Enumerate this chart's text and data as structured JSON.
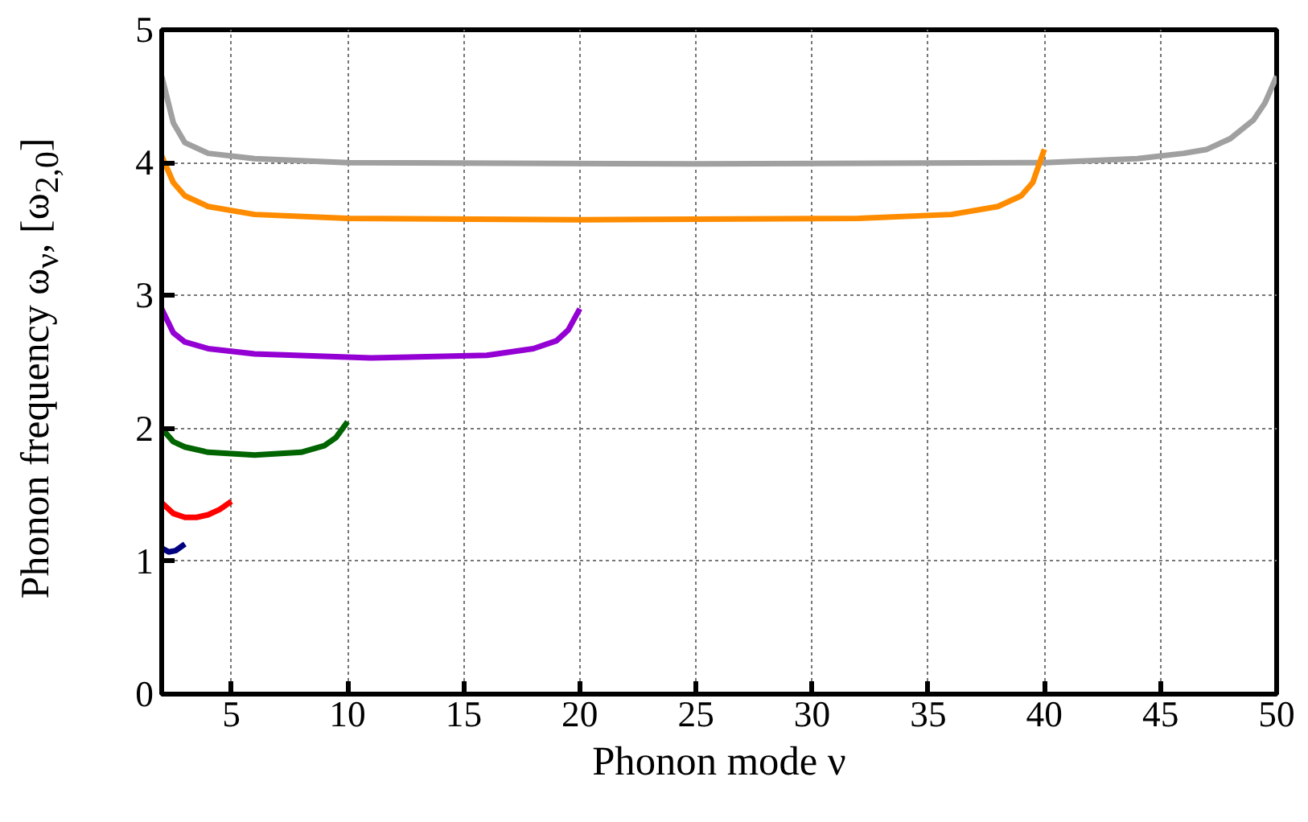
{
  "chart_data": {
    "type": "line",
    "xlabel": "Phonon mode ν",
    "ylabel": "Phonon frequency ω$_{ν}$, [ω$_{2,0}$]",
    "xlim": [
      2,
      50
    ],
    "ylim": [
      0,
      5
    ],
    "xticks": [
      5,
      10,
      15,
      20,
      25,
      30,
      35,
      40,
      45,
      50
    ],
    "yticks": [
      0,
      1,
      2,
      3,
      4,
      5
    ],
    "grid": true,
    "line_style": "solid",
    "marker": "none",
    "series": [
      {
        "color": "#a0a0a0",
        "x": [
          2,
          2.5,
          3,
          4,
          6,
          10,
          25,
          40,
          44,
          46,
          47,
          48,
          49,
          49.5,
          50
        ],
        "values": [
          4.65,
          4.3,
          4.15,
          4.07,
          4.03,
          4.0,
          3.99,
          4.0,
          4.03,
          4.07,
          4.1,
          4.18,
          4.32,
          4.45,
          4.65
        ]
      },
      {
        "color": "#ff8c00",
        "x": [
          2,
          2.5,
          3,
          4,
          6,
          10,
          20,
          32,
          36,
          38,
          39,
          39.5,
          40
        ],
        "values": [
          4.05,
          3.85,
          3.75,
          3.67,
          3.61,
          3.58,
          3.57,
          3.58,
          3.61,
          3.67,
          3.75,
          3.85,
          4.1
        ]
      },
      {
        "color": "#9400d3",
        "x": [
          2,
          2.5,
          3,
          4,
          6,
          11,
          16,
          18,
          19,
          19.5,
          20
        ],
        "values": [
          2.9,
          2.72,
          2.65,
          2.6,
          2.56,
          2.53,
          2.55,
          2.6,
          2.66,
          2.74,
          2.9
        ]
      },
      {
        "color": "#006400",
        "x": [
          2,
          2.5,
          3,
          4,
          6,
          8,
          9,
          9.5,
          10
        ],
        "values": [
          2.0,
          1.9,
          1.86,
          1.82,
          1.8,
          1.82,
          1.87,
          1.93,
          2.05
        ]
      },
      {
        "color": "#ff0000",
        "x": [
          2,
          2.5,
          3,
          3.5,
          4,
          4.5,
          5
        ],
        "values": [
          1.44,
          1.36,
          1.33,
          1.33,
          1.35,
          1.39,
          1.45
        ]
      },
      {
        "color": "#000080",
        "x": [
          2,
          2.3,
          2.6,
          3
        ],
        "values": [
          1.1,
          1.07,
          1.08,
          1.13
        ]
      }
    ]
  }
}
